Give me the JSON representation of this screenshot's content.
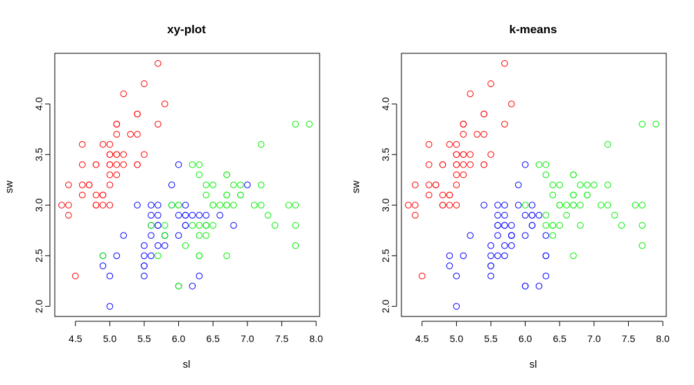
{
  "colors": {
    "red": "#ff0000",
    "green": "#00ee00",
    "blue": "#0000ff"
  },
  "chart_data": [
    {
      "type": "scatter",
      "title": "xy-plot",
      "xlabel": "sl",
      "ylabel": "sw",
      "xlim": [
        4.2,
        8.05
      ],
      "ylim": [
        1.9,
        4.5
      ],
      "xticks": [
        "4.5",
        "5.0",
        "5.5",
        "6.0",
        "6.5",
        "7.0",
        "7.5",
        "8.0"
      ],
      "yticks": [
        "2.0",
        "2.5",
        "3.0",
        "3.5",
        "4.0"
      ],
      "series": [
        {
          "color": "red",
          "x": [
            4.3,
            4.4,
            4.4,
            4.4,
            4.5,
            4.6,
            4.6,
            4.6,
            4.6,
            4.7,
            4.7,
            4.8,
            4.8,
            4.8,
            4.8,
            4.8,
            4.9,
            4.9,
            4.9,
            4.9,
            5.0,
            5.0,
            5.0,
            5.0,
            5.0,
            5.0,
            5.0,
            5.0,
            5.1,
            5.1,
            5.1,
            5.1,
            5.1,
            5.1,
            5.1,
            5.1,
            5.2,
            5.2,
            5.2,
            5.3,
            5.4,
            5.4,
            5.4,
            5.4,
            5.4,
            5.5,
            5.5,
            5.7,
            5.7,
            5.8
          ],
          "y": [
            3.0,
            2.9,
            3.0,
            3.2,
            2.3,
            3.1,
            3.2,
            3.4,
            3.6,
            3.2,
            3.2,
            3.0,
            3.0,
            3.1,
            3.4,
            3.4,
            3.0,
            3.1,
            3.1,
            3.6,
            3.0,
            3.2,
            3.3,
            3.4,
            3.4,
            3.5,
            3.5,
            3.6,
            3.3,
            3.4,
            3.5,
            3.5,
            3.7,
            3.8,
            3.8,
            3.8,
            3.4,
            3.5,
            4.1,
            3.7,
            3.4,
            3.4,
            3.7,
            3.9,
            3.9,
            3.5,
            4.2,
            3.8,
            4.4,
            4.0
          ]
        },
        {
          "color": "blue",
          "x": [
            4.9,
            4.9,
            5.0,
            5.0,
            5.1,
            5.2,
            5.4,
            5.5,
            5.5,
            5.5,
            5.5,
            5.5,
            5.6,
            5.6,
            5.6,
            5.6,
            5.6,
            5.7,
            5.7,
            5.7,
            5.7,
            5.7,
            5.8,
            5.8,
            5.8,
            5.8,
            5.9,
            5.9,
            6.0,
            6.0,
            6.0,
            6.0,
            6.1,
            6.1,
            6.1,
            6.1,
            6.1,
            6.2,
            6.2,
            6.3,
            6.3,
            6.4,
            6.4,
            6.6,
            6.8,
            7.0
          ],
          "y": [
            2.4,
            2.5,
            2.0,
            2.3,
            2.5,
            2.7,
            3.0,
            2.3,
            2.4,
            2.4,
            2.5,
            2.6,
            2.5,
            2.7,
            2.8,
            2.9,
            3.0,
            2.6,
            2.8,
            2.8,
            2.9,
            3.0,
            2.6,
            2.7,
            2.7,
            2.7,
            3.0,
            3.2,
            2.2,
            2.7,
            2.9,
            3.4,
            2.8,
            2.8,
            2.9,
            2.9,
            3.0,
            2.2,
            2.9,
            2.3,
            2.9,
            2.8,
            2.9,
            2.9,
            2.8,
            3.2
          ]
        },
        {
          "color": "green",
          "x": [
            4.9,
            5.6,
            5.7,
            5.8,
            5.8,
            5.8,
            5.9,
            6.0,
            6.0,
            6.0,
            6.1,
            6.2,
            6.2,
            6.3,
            6.3,
            6.3,
            6.3,
            6.3,
            6.3,
            6.4,
            6.4,
            6.4,
            6.4,
            6.4,
            6.5,
            6.5,
            6.5,
            6.5,
            6.6,
            6.7,
            6.7,
            6.7,
            6.7,
            6.7,
            6.7,
            6.7,
            6.8,
            6.8,
            6.9,
            6.9,
            6.9,
            7.1,
            7.2,
            7.2,
            7.2,
            7.3,
            7.4,
            7.6,
            7.7,
            7.7,
            7.7,
            7.7,
            7.9,
            6.0
          ],
          "y": [
            2.5,
            2.8,
            2.5,
            2.7,
            2.7,
            2.8,
            3.0,
            2.2,
            3.0,
            3.0,
            2.6,
            2.8,
            3.4,
            2.5,
            2.5,
            2.7,
            2.8,
            3.3,
            3.4,
            2.7,
            2.8,
            2.8,
            3.1,
            3.2,
            2.8,
            3.0,
            3.0,
            3.2,
            3.0,
            2.5,
            3.0,
            3.0,
            3.1,
            3.1,
            3.3,
            3.3,
            3.0,
            3.2,
            3.1,
            3.1,
            3.2,
            3.0,
            3.0,
            3.2,
            3.6,
            2.9,
            2.8,
            3.0,
            2.6,
            2.8,
            3.0,
            3.8,
            3.8,
            2.2
          ]
        }
      ]
    },
    {
      "type": "scatter",
      "title": "k-means",
      "xlabel": "sl",
      "ylabel": "sw",
      "xlim": [
        4.2,
        8.05
      ],
      "ylim": [
        1.9,
        4.5
      ],
      "xticks": [
        "4.5",
        "5.0",
        "5.5",
        "6.0",
        "6.5",
        "7.0",
        "7.5",
        "8.0"
      ],
      "yticks": [
        "2.0",
        "2.5",
        "3.0",
        "3.5",
        "4.0"
      ],
      "series": [
        {
          "color": "red",
          "x": [
            4.3,
            4.4,
            4.4,
            4.4,
            4.5,
            4.6,
            4.6,
            4.6,
            4.6,
            4.7,
            4.7,
            4.8,
            4.8,
            4.8,
            4.8,
            4.8,
            4.9,
            4.9,
            4.9,
            4.9,
            5.0,
            5.0,
            5.0,
            5.0,
            5.0,
            5.0,
            5.0,
            5.0,
            5.1,
            5.1,
            5.1,
            5.1,
            5.1,
            5.1,
            5.1,
            5.1,
            5.2,
            5.2,
            5.2,
            5.3,
            5.4,
            5.4,
            5.4,
            5.4,
            5.4,
            5.5,
            5.5,
            5.7,
            5.7,
            5.8
          ],
          "y": [
            3.0,
            2.9,
            3.0,
            3.2,
            2.3,
            3.1,
            3.2,
            3.4,
            3.6,
            3.2,
            3.2,
            3.0,
            3.0,
            3.1,
            3.4,
            3.4,
            3.0,
            3.1,
            3.1,
            3.6,
            3.0,
            3.2,
            3.3,
            3.4,
            3.4,
            3.5,
            3.5,
            3.6,
            3.3,
            3.4,
            3.5,
            3.5,
            3.7,
            3.8,
            3.8,
            3.8,
            3.4,
            3.5,
            4.1,
            3.7,
            3.4,
            3.4,
            3.7,
            3.9,
            3.9,
            3.5,
            4.2,
            3.8,
            4.4,
            4.0
          ]
        },
        {
          "color": "blue",
          "x": [
            4.9,
            4.9,
            5.0,
            5.0,
            5.1,
            5.2,
            5.4,
            5.5,
            5.5,
            5.5,
            5.5,
            5.5,
            5.6,
            5.6,
            5.6,
            5.6,
            5.6,
            5.6,
            5.7,
            5.7,
            5.7,
            5.7,
            5.7,
            5.7,
            5.8,
            5.8,
            5.8,
            5.8,
            5.8,
            5.8,
            5.9,
            5.9,
            6.0,
            6.0,
            6.0,
            6.0,
            6.0,
            6.1,
            6.1,
            6.1,
            6.1,
            6.1,
            6.2,
            6.2,
            6.3,
            6.3,
            6.3,
            6.3
          ],
          "y": [
            2.4,
            2.5,
            2.0,
            2.3,
            2.5,
            2.7,
            3.0,
            2.3,
            2.4,
            2.4,
            2.5,
            2.6,
            2.5,
            2.7,
            2.8,
            2.8,
            2.9,
            3.0,
            2.5,
            2.6,
            2.8,
            2.8,
            2.9,
            3.0,
            2.6,
            2.7,
            2.7,
            2.7,
            2.7,
            2.8,
            3.0,
            3.2,
            2.2,
            2.2,
            2.7,
            2.9,
            3.4,
            2.8,
            2.8,
            2.9,
            2.9,
            3.0,
            2.2,
            2.9,
            2.3,
            2.5,
            2.5,
            2.7
          ]
        },
        {
          "color": "green",
          "x": [
            6.2,
            6.3,
            6.3,
            6.3,
            6.4,
            6.4,
            6.4,
            6.4,
            6.4,
            6.5,
            6.5,
            6.5,
            6.5,
            6.6,
            6.6,
            6.7,
            6.7,
            6.7,
            6.7,
            6.7,
            6.7,
            6.7,
            6.8,
            6.8,
            6.8,
            6.9,
            6.9,
            6.9,
            7.0,
            7.1,
            7.2,
            7.2,
            7.2,
            7.3,
            7.4,
            7.6,
            7.7,
            7.7,
            7.7,
            7.7,
            7.9,
            6.3,
            6.0
          ],
          "y": [
            3.4,
            2.8,
            3.3,
            3.4,
            2.7,
            2.8,
            2.8,
            3.1,
            3.2,
            2.8,
            3.0,
            3.0,
            3.2,
            2.9,
            3.0,
            2.5,
            3.0,
            3.0,
            3.1,
            3.1,
            3.3,
            3.3,
            2.8,
            3.0,
            3.2,
            3.1,
            3.1,
            3.2,
            3.2,
            3.0,
            3.0,
            3.2,
            3.6,
            2.9,
            2.8,
            3.0,
            2.6,
            2.8,
            3.0,
            3.8,
            3.8,
            2.9,
            3.0
          ]
        }
      ]
    }
  ]
}
